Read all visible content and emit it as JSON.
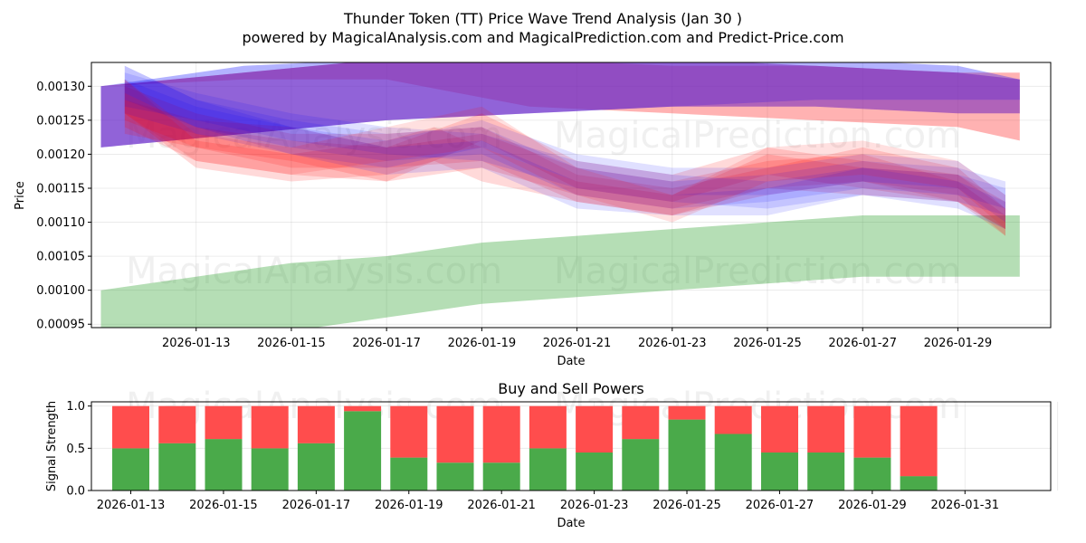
{
  "header": {
    "title": "Thunder Token (TT) Price Wave Trend Analysis (Jan 30 )",
    "subtitle": "powered by MagicalAnalysis.com and MagicalPrediction.com and Predict-Price.com"
  },
  "watermarks": [
    "MagicalAnalysis.com",
    "MagicalPrediction.com"
  ],
  "colors": {
    "red": "#ff0000",
    "blue": "#0000ff",
    "purple": "#7b2fbe",
    "green": "#2ca02c",
    "buy": "#4aaa4a",
    "sell": "#ff4d4d"
  },
  "chart_data": [
    {
      "type": "area",
      "title": "",
      "xlabel": "Date",
      "ylabel": "Price",
      "x_start": "2026-01-11",
      "xlim_days": [
        -0.2,
        19.95
      ],
      "ylim": [
        0.000945,
        0.001335
      ],
      "yticks": [
        0.00095,
        0.001,
        0.00105,
        0.0011,
        0.00115,
        0.0012,
        0.00125,
        0.0013
      ],
      "ytick_labels": [
        "0.00095",
        "0.00100",
        "0.00105",
        "0.00110",
        "0.00115",
        "0.00120",
        "0.00125",
        "0.00130"
      ],
      "xticks_days": [
        2,
        4,
        6,
        8,
        10,
        12,
        14,
        16,
        18
      ],
      "xtick_labels": [
        "2026-01-13",
        "2026-01-15",
        "2026-01-17",
        "2026-01-19",
        "2026-01-21",
        "2026-01-23",
        "2026-01-25",
        "2026-01-27",
        "2026-01-29"
      ],
      "bands": [
        {
          "name": "red-outer",
          "color": "#ff0000",
          "opacity": 0.3,
          "x": [
            0,
            3,
            6,
            9,
            12,
            15,
            18,
            19.3
          ],
          "lower": [
            0.0013,
            0.00131,
            0.00131,
            0.00127,
            0.00126,
            0.00125,
            0.00124,
            0.00122
          ],
          "upper": [
            0.0013,
            0.00132,
            0.00134,
            0.00134,
            0.00133,
            0.00133,
            0.00132,
            0.00132
          ]
        },
        {
          "name": "blue-outer",
          "color": "#0000ff",
          "opacity": 0.3,
          "x": [
            0,
            3,
            6,
            9,
            12,
            15,
            18,
            19.3
          ],
          "lower": [
            0.00121,
            0.00123,
            0.00125,
            0.00126,
            0.00127,
            0.00128,
            0.00128,
            0.00128
          ],
          "upper": [
            0.0013,
            0.00133,
            0.00134,
            0.00134,
            0.00134,
            0.00134,
            0.00133,
            0.00131
          ]
        },
        {
          "name": "purple-outer",
          "color": "#7b2fbe",
          "opacity": 0.6,
          "x": [
            0,
            3,
            6,
            9,
            12,
            15,
            18,
            19.3
          ],
          "lower": [
            0.00121,
            0.00123,
            0.00125,
            0.00126,
            0.00127,
            0.00127,
            0.00126,
            0.00126
          ],
          "upper": [
            0.0013,
            0.00132,
            0.00134,
            0.00134,
            0.00134,
            0.00133,
            0.00132,
            0.00131
          ]
        },
        {
          "name": "green-outer",
          "color": "#2ca02c",
          "opacity": 0.35,
          "x": [
            0,
            2,
            4,
            6,
            7,
            8,
            10,
            12,
            14,
            16,
            18,
            19.3
          ],
          "lower": [
            0.00094,
            0.00093,
            0.00094,
            0.00096,
            0.00097,
            0.00098,
            0.00099,
            0.001,
            0.00101,
            0.00102,
            0.00102,
            0.00102
          ],
          "upper": [
            0.001,
            0.00102,
            0.00104,
            0.00105,
            0.00106,
            0.00107,
            0.00108,
            0.00109,
            0.0011,
            0.00111,
            0.00111,
            0.00111
          ]
        }
      ],
      "waves": [
        {
          "color": "#ff0000",
          "opacity": 0.15,
          "x": [
            0.5,
            2,
            4,
            6,
            7,
            8,
            10,
            12,
            14,
            16,
            18,
            19
          ],
          "upper": [
            0.00131,
            0.00122,
            0.0012,
            0.00122,
            0.00124,
            0.00121,
            0.00116,
            0.00114,
            0.0012,
            0.00118,
            0.00117,
            0.00112
          ],
          "lower": [
            0.00126,
            0.00118,
            0.00116,
            0.00117,
            0.00119,
            0.00116,
            0.00113,
            0.00111,
            0.00115,
            0.00114,
            0.00113,
            0.00109
          ]
        },
        {
          "color": "#ff0000",
          "opacity": 0.15,
          "x": [
            0.5,
            2,
            4,
            6,
            8,
            10,
            12,
            14,
            16,
            18,
            19
          ],
          "upper": [
            0.00129,
            0.00124,
            0.00122,
            0.00121,
            0.00123,
            0.00118,
            0.00116,
            0.00119,
            0.0012,
            0.00116,
            0.00111
          ],
          "lower": [
            0.00124,
            0.00119,
            0.00117,
            0.00116,
            0.00118,
            0.00114,
            0.00112,
            0.00115,
            0.00116,
            0.00113,
            0.00108
          ]
        },
        {
          "color": "#ff0000",
          "opacity": 0.15,
          "x": [
            0.5,
            2,
            4,
            6,
            8,
            10,
            12,
            14,
            16,
            18,
            19
          ],
          "upper": [
            0.00128,
            0.00125,
            0.00124,
            0.00121,
            0.00126,
            0.00119,
            0.00117,
            0.00121,
            0.00119,
            0.00117,
            0.00113
          ],
          "lower": [
            0.00123,
            0.00121,
            0.00119,
            0.00116,
            0.00122,
            0.00115,
            0.00113,
            0.00117,
            0.00115,
            0.00113,
            0.00109
          ]
        },
        {
          "color": "#ff0000",
          "opacity": 0.15,
          "x": [
            0.5,
            2,
            4,
            6,
            8,
            10,
            12,
            14,
            16,
            18,
            19
          ],
          "upper": [
            0.0013,
            0.00126,
            0.00123,
            0.00123,
            0.00124,
            0.00117,
            0.00115,
            0.00118,
            0.00121,
            0.00118,
            0.00112
          ],
          "lower": [
            0.00125,
            0.00121,
            0.00118,
            0.00118,
            0.00119,
            0.00113,
            0.00111,
            0.00114,
            0.00116,
            0.00114,
            0.00108
          ]
        },
        {
          "color": "#0000ff",
          "opacity": 0.12,
          "x": [
            0.5,
            2,
            4,
            6,
            8,
            10,
            12,
            14,
            16,
            18,
            19
          ],
          "upper": [
            0.00133,
            0.00128,
            0.00125,
            0.00123,
            0.00124,
            0.00118,
            0.00116,
            0.00117,
            0.00119,
            0.00118,
            0.00116
          ],
          "lower": [
            0.00128,
            0.00124,
            0.00121,
            0.00119,
            0.0012,
            0.00114,
            0.00112,
            0.00113,
            0.00115,
            0.00114,
            0.00112
          ]
        },
        {
          "color": "#0000ff",
          "opacity": 0.12,
          "x": [
            0.5,
            2,
            4,
            6,
            8,
            10,
            12,
            14,
            16,
            18,
            19
          ],
          "upper": [
            0.00132,
            0.00129,
            0.00126,
            0.00124,
            0.00123,
            0.00119,
            0.00117,
            0.00116,
            0.00118,
            0.00117,
            0.00115
          ],
          "lower": [
            0.00127,
            0.00125,
            0.00122,
            0.0012,
            0.00119,
            0.00115,
            0.00113,
            0.00112,
            0.00114,
            0.00113,
            0.00111
          ]
        },
        {
          "color": "#0000ff",
          "opacity": 0.12,
          "x": [
            0.5,
            2,
            4,
            6,
            8,
            10,
            12,
            14,
            16,
            18,
            19
          ],
          "upper": [
            0.00131,
            0.00127,
            0.00124,
            0.00122,
            0.00125,
            0.0012,
            0.00118,
            0.00118,
            0.0012,
            0.00119,
            0.00114
          ],
          "lower": [
            0.00126,
            0.00123,
            0.0012,
            0.00118,
            0.00121,
            0.00116,
            0.00114,
            0.00114,
            0.00116,
            0.00115,
            0.0011
          ]
        },
        {
          "color": "#0000ff",
          "opacity": 0.12,
          "x": [
            0.5,
            2,
            4,
            6,
            8,
            10,
            12,
            14,
            16,
            18,
            19
          ],
          "upper": [
            0.00133,
            0.00128,
            0.00124,
            0.00121,
            0.00122,
            0.00116,
            0.00114,
            0.00115,
            0.00118,
            0.00116,
            0.00113
          ],
          "lower": [
            0.00129,
            0.00124,
            0.0012,
            0.00117,
            0.00118,
            0.00112,
            0.00111,
            0.00111,
            0.00114,
            0.00112,
            0.00109
          ]
        },
        {
          "color": "#ff0000",
          "opacity": 0.12,
          "x": [
            0.5,
            2,
            4,
            6,
            8,
            10,
            12,
            14,
            16,
            18,
            19
          ],
          "upper": [
            0.00131,
            0.00123,
            0.00121,
            0.00124,
            0.00127,
            0.00118,
            0.00114,
            0.00121,
            0.00122,
            0.00119,
            0.00114
          ],
          "lower": [
            0.00126,
            0.00119,
            0.00117,
            0.00119,
            0.00121,
            0.00114,
            0.0011,
            0.00116,
            0.00117,
            0.00115,
            0.00109
          ]
        }
      ]
    },
    {
      "type": "bar",
      "title": "Buy and Sell Powers",
      "xlabel": "Date",
      "ylabel": "Signal Strength",
      "ylim": [
        0,
        1.05
      ],
      "yticks": [
        0.0,
        0.5,
        1.0
      ],
      "ytick_labels": [
        "0.0",
        "0.5",
        "1.0"
      ],
      "xlim_days": [
        -0.85,
        19.85
      ],
      "xticks_days": [
        0,
        2,
        4,
        6,
        8,
        10,
        12,
        14,
        16,
        18,
        20
      ],
      "xtick_labels": [
        "2026-01-13",
        "2026-01-15",
        "2026-01-17",
        "2026-01-19",
        "2026-01-21",
        "2026-01-23",
        "2026-01-25",
        "2026-01-27",
        "2026-01-29",
        "2026-01-31"
      ],
      "xtick_labels_days": [
        0,
        2,
        4,
        6,
        8,
        10,
        12,
        14,
        16,
        18
      ],
      "categories": [
        "2026-01-13",
        "2026-01-14",
        "2026-01-15",
        "2026-01-16",
        "2026-01-17",
        "2026-01-18",
        "2026-01-19",
        "2026-01-20",
        "2026-01-21",
        "2026-01-22",
        "2026-01-23",
        "2026-01-24",
        "2026-01-25",
        "2026-01-26",
        "2026-01-27",
        "2026-01-28",
        "2026-01-29",
        "2026-01-30"
      ],
      "series": [
        {
          "name": "Buy",
          "color": "#4aaa4a",
          "values": [
            0.5,
            0.56,
            0.61,
            0.5,
            0.56,
            0.94,
            0.39,
            0.33,
            0.33,
            0.5,
            0.45,
            0.61,
            0.84,
            0.67,
            0.45,
            0.45,
            0.39,
            0.17
          ]
        },
        {
          "name": "Sell",
          "color": "#ff4d4d",
          "values": [
            0.5,
            0.44,
            0.39,
            0.5,
            0.44,
            0.06,
            0.61,
            0.67,
            0.67,
            0.5,
            0.55,
            0.39,
            0.16,
            0.33,
            0.55,
            0.55,
            0.61,
            0.83
          ]
        }
      ]
    }
  ]
}
